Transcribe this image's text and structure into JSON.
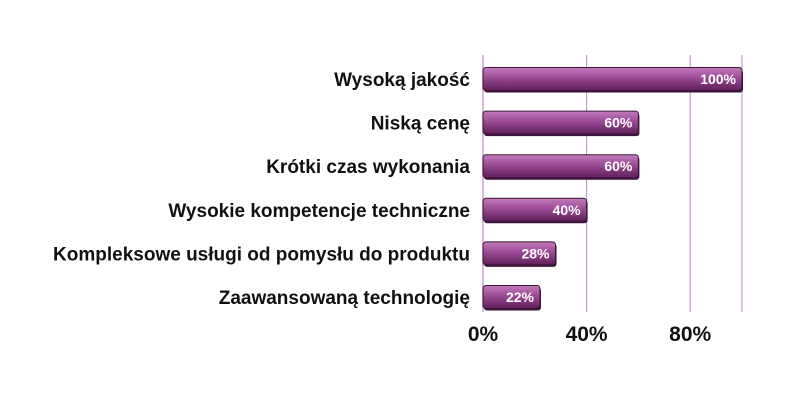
{
  "chart_data": {
    "type": "bar",
    "orientation": "horizontal",
    "categories": [
      "Wysoką jakość",
      "Niską cenę",
      "Krótki czas wykonania",
      "Wysokie kompetencje techniczne",
      "Kompleksowe usługi od pomysłu do produktu",
      "Zaawansowaną technologię"
    ],
    "values": [
      100,
      60,
      60,
      40,
      28,
      22
    ],
    "value_labels": [
      "100%",
      "60%",
      "60%",
      "40%",
      "28%",
      "22%"
    ],
    "xlim": [
      0,
      100
    ],
    "x_ticks": [
      0,
      40,
      80
    ],
    "x_tick_labels": [
      "0%",
      "40%",
      "80%"
    ],
    "grid": "vertical",
    "colors": {
      "bar": "#9c4a95",
      "bar_light": "#c27cbc",
      "bar_dark": "#5e1f58",
      "bar_edge": "#3e1439",
      "grid": "#b98ac0",
      "axis": "#c9a6cf"
    }
  }
}
